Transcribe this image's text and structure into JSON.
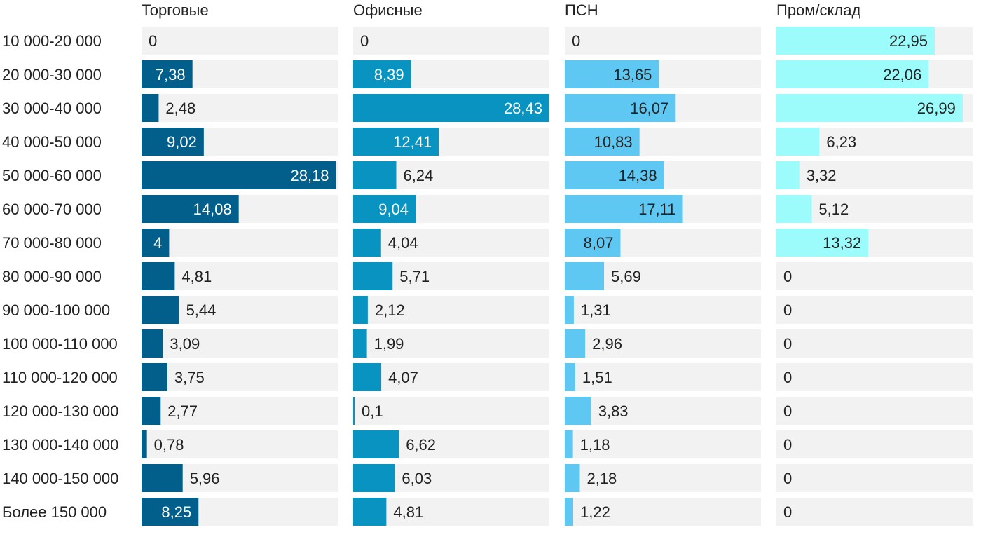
{
  "chart_data": {
    "type": "bar",
    "orientation": "horizontal",
    "layout": "small-multiples",
    "categories": [
      "10 000-20 000",
      "20 000-30 000",
      "30 000-40 000",
      "40 000-50 000",
      "50 000-60 000",
      "60 000-70 000",
      "70 000-80 000",
      "80 000-90 000",
      "90 000-100 000",
      "100 000-110 000",
      "110 000-120 000",
      "120 000-130 000",
      "130 000-140 000",
      "140 000-150 000",
      "Более 150 000"
    ],
    "series": [
      {
        "name": "Торговые",
        "color": "#025e8a",
        "label_color_inside": "#ffffff",
        "values": [
          0,
          7.38,
          2.48,
          9.02,
          28.18,
          14.08,
          4,
          4.81,
          5.44,
          3.09,
          3.75,
          2.77,
          0.78,
          5.96,
          8.25
        ],
        "labels": [
          "0",
          "7,38",
          "2,48",
          "9,02",
          "28,18",
          "14,08",
          "4",
          "4,81",
          "5,44",
          "3,09",
          "3,75",
          "2,77",
          "0,78",
          "5,96",
          "8,25"
        ]
      },
      {
        "name": "Офисные",
        "color": "#0893c1",
        "label_color_inside": "#ffffff",
        "values": [
          0,
          8.39,
          28.43,
          12.41,
          6.24,
          9.04,
          4.04,
          5.71,
          2.12,
          1.99,
          4.07,
          0.1,
          6.62,
          6.03,
          4.81
        ],
        "labels": [
          "0",
          "8,39",
          "28,43",
          "12,41",
          "6,24",
          "9,04",
          "4,04",
          "5,71",
          "2,12",
          "1,99",
          "4,07",
          "0,1",
          "6,62",
          "6,03",
          "4,81"
        ]
      },
      {
        "name": "ПСН",
        "color": "#5ec8f3",
        "label_color_inside": "#222222",
        "values": [
          0,
          13.65,
          16.07,
          10.83,
          14.38,
          17.11,
          8.07,
          5.69,
          1.31,
          2.96,
          1.51,
          3.83,
          1.18,
          2.18,
          1.22
        ],
        "labels": [
          "0",
          "13,65",
          "16,07",
          "10,83",
          "14,38",
          "17,11",
          "8,07",
          "5,69",
          "1,31",
          "2,96",
          "1,51",
          "3,83",
          "1,18",
          "2,18",
          "1,22"
        ]
      },
      {
        "name": "Пром/склад",
        "color": "#9bfcfb",
        "label_color_inside": "#222222",
        "values": [
          22.95,
          22.06,
          26.99,
          6.23,
          3.32,
          5.12,
          13.32,
          0,
          0,
          0,
          0,
          0,
          0,
          0,
          0
        ],
        "labels": [
          "22,95",
          "22,06",
          "26,99",
          "6,23",
          "3,32",
          "5,12",
          "13,32",
          "0",
          "0",
          "0",
          "0",
          "0",
          "0",
          "0",
          "0"
        ]
      }
    ],
    "xlim": [
      0,
      28.43
    ],
    "track_color": "#f2f2f2",
    "text_color": "#222222",
    "grid": false,
    "legend": "none",
    "title": "",
    "xlabel": "",
    "ylabel": ""
  }
}
